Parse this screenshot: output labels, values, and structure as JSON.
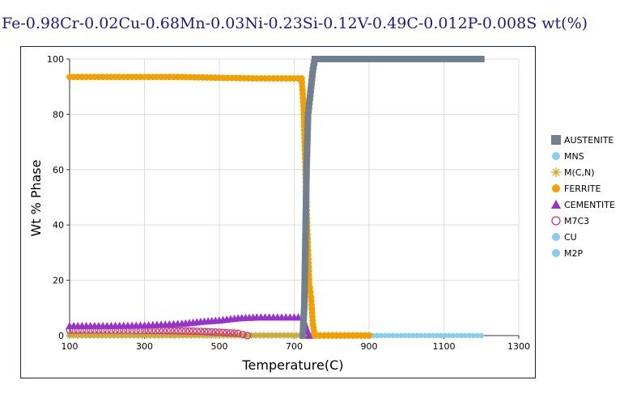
{
  "title": "Fe-0.98Cr-0.02Cu-0.68Mn-0.03Ni-0.23Si-0.12V-0.49C-0.012P-0.008S wt(%)",
  "chart_data": {
    "type": "line",
    "title": "Fe-0.98Cr-0.02Cu-0.68Mn-0.03Ni-0.23Si-0.12V-0.49C-0.012P-0.008S wt(%)",
    "xlabel": "Temperature(C)",
    "ylabel": "Wt % Phase",
    "xlim": [
      100,
      1300
    ],
    "ylim": [
      0,
      100
    ],
    "xticks": [
      100,
      300,
      500,
      700,
      900,
      1100,
      1300
    ],
    "yticks": [
      0,
      20,
      40,
      60,
      80,
      100
    ],
    "grid": true,
    "legend_position": "right",
    "series": [
      {
        "name": "AUSTENITE",
        "color": "#708090",
        "marker": "square",
        "points": [
          [
            723,
            0
          ],
          [
            727,
            11
          ],
          [
            733,
            60
          ],
          [
            737,
            80
          ],
          [
            742,
            86
          ],
          [
            750,
            96
          ],
          [
            755,
            100
          ],
          [
            780,
            100
          ],
          [
            850,
            100
          ],
          [
            950,
            100
          ],
          [
            1050,
            100
          ],
          [
            1150,
            100
          ],
          [
            1200,
            100
          ]
        ]
      },
      {
        "name": "MNS",
        "color": "#87ceeb",
        "marker": "circle",
        "points": [
          [
            100,
            0.1
          ],
          [
            900,
            0.1
          ]
        ]
      },
      {
        "name": "M(C,N)",
        "color": "#daa520",
        "marker": "star",
        "points": [
          [
            100,
            0.1
          ],
          [
            900,
            0.1
          ]
        ]
      },
      {
        "name": "FERRITE",
        "color": "#f0a000",
        "marker": "circle",
        "points": [
          [
            100,
            93.5
          ],
          [
            200,
            93.5
          ],
          [
            300,
            93.5
          ],
          [
            400,
            93.5
          ],
          [
            500,
            93.2
          ],
          [
            600,
            93
          ],
          [
            700,
            93
          ],
          [
            720,
            93
          ],
          [
            725,
            83
          ],
          [
            735,
            38
          ],
          [
            740,
            19
          ],
          [
            745,
            14
          ],
          [
            750,
            4
          ],
          [
            755,
            0
          ],
          [
            780,
            0
          ],
          [
            900,
            0
          ]
        ]
      },
      {
        "name": "CEMENTITE",
        "color": "#9932cc",
        "marker": "triangle",
        "points": [
          [
            100,
            3.5
          ],
          [
            200,
            3.5
          ],
          [
            300,
            3.7
          ],
          [
            400,
            4.3
          ],
          [
            450,
            5
          ],
          [
            500,
            5.5
          ],
          [
            550,
            6.3
          ],
          [
            600,
            6.6
          ],
          [
            700,
            6.6
          ],
          [
            722,
            6.6
          ],
          [
            735,
            1.5
          ],
          [
            740,
            0
          ]
        ]
      },
      {
        "name": "M7C3",
        "color": "#cc3377",
        "marker": "open-circle",
        "points": [
          [
            100,
            2
          ],
          [
            200,
            2
          ],
          [
            300,
            1.9
          ],
          [
            350,
            1.8
          ],
          [
            400,
            1.7
          ],
          [
            450,
            1.5
          ],
          [
            500,
            1.2
          ],
          [
            550,
            0.8
          ],
          [
            575,
            0
          ]
        ]
      },
      {
        "name": "CU",
        "color": "#87ceeb",
        "marker": "circle",
        "points": [
          [
            100,
            0
          ],
          [
            380,
            0
          ]
        ]
      },
      {
        "name": "M2P",
        "color": "#87ceeb",
        "marker": "circle",
        "points": [
          [
            900,
            0
          ],
          [
            1200,
            0
          ]
        ]
      }
    ]
  }
}
